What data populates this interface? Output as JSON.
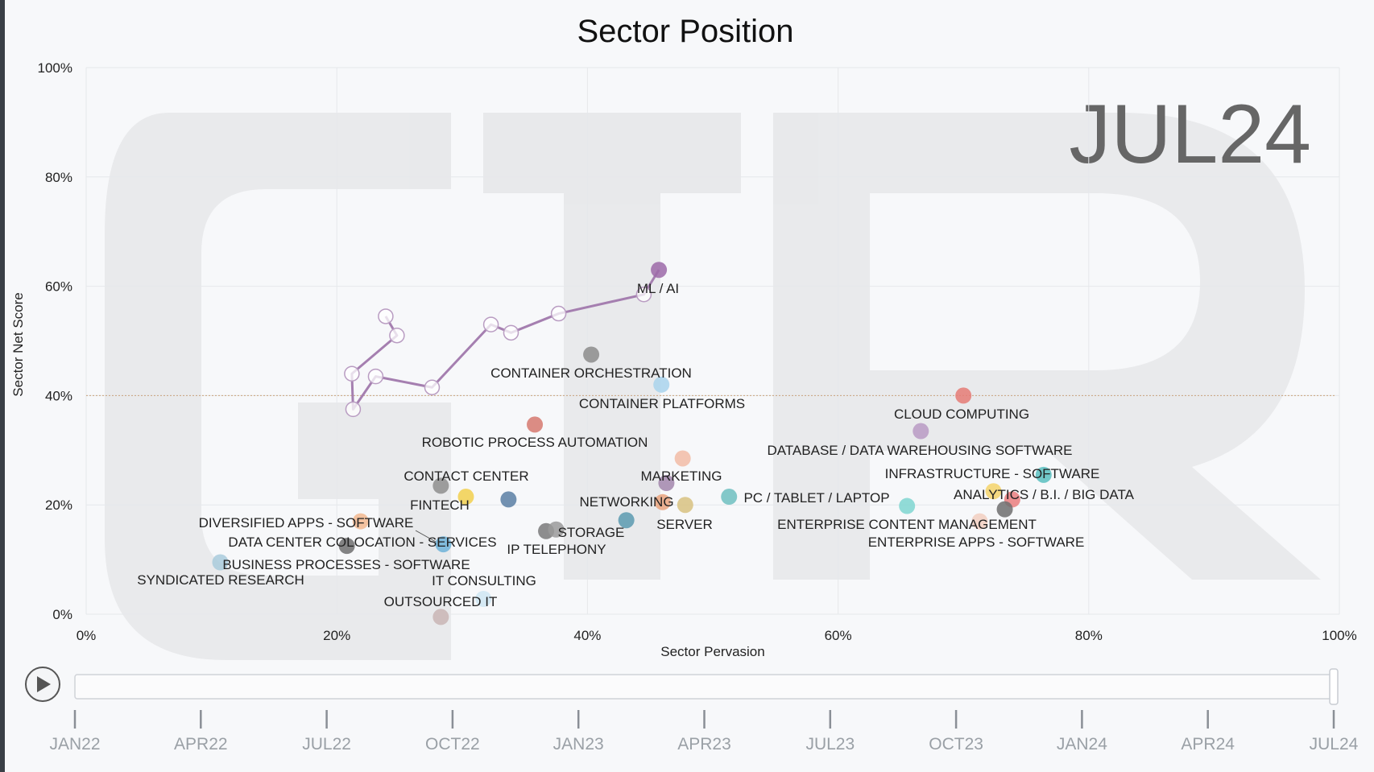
{
  "period_label": "JUL24",
  "chart_data": {
    "type": "scatter",
    "title": "Sector Position",
    "xlabel": "Sector Pervasion",
    "ylabel": "Sector Net Score",
    "xlim": [
      0,
      100
    ],
    "ylim": [
      0,
      100
    ],
    "x_ticks": [
      "0%",
      "20%",
      "40%",
      "60%",
      "80%",
      "100%"
    ],
    "y_ticks": [
      "0%",
      "20%",
      "40%",
      "60%",
      "80%",
      "100%"
    ],
    "reference_line_y": 40,
    "grid": true,
    "points": [
      {
        "label": "ML / AI",
        "x": 45.7,
        "y": 63.0,
        "color": "#9c6aa8"
      },
      {
        "label": "CONTAINER ORCHESTRATION",
        "x": 40.3,
        "y": 47.5,
        "color": "#8c8c8c"
      },
      {
        "label": "CONTAINER PLATFORMS",
        "x": 45.9,
        "y": 42.0,
        "color": "#a9d3ec"
      },
      {
        "label": "CLOUD COMPUTING",
        "x": 70.0,
        "y": 40.0,
        "color": "#e57b76"
      },
      {
        "label": "ROBOTIC PROCESS AUTOMATION",
        "x": 35.8,
        "y": 34.7,
        "color": "#d6796f"
      },
      {
        "label": "DATABASE / DATA WAREHOUSING SOFTWARE",
        "x": 66.6,
        "y": 33.5,
        "color": "#b89ac4"
      },
      {
        "label": "MARKETING",
        "x": 47.6,
        "y": 28.5,
        "color": "#f2bca6"
      },
      {
        "label": "MARKETING",
        "x": 46.3,
        "y": 24.0,
        "color": "#a286ab"
      },
      {
        "label": "INFRASTRUCTURE - SOFTWARE",
        "x": 76.4,
        "y": 25.5,
        "color": "#59bfbf"
      },
      {
        "label": "CONTACT CENTER",
        "x": 28.3,
        "y": 23.5,
        "color": "#8e8e8e"
      },
      {
        "label": "FINTECH",
        "x": 30.3,
        "y": 21.5,
        "color": "#f2d04d"
      },
      {
        "label": "FINTECH",
        "x": 33.7,
        "y": 21.0,
        "color": "#5a7fa3"
      },
      {
        "label": "ANALYTICS / B.I. / BIG DATA",
        "x": 72.4,
        "y": 22.5,
        "color": "#f4d46a"
      },
      {
        "label": "ANALYTICS / B.I. / BIG DATA",
        "x": 73.9,
        "y": 21.0,
        "color": "#ea7e7e"
      },
      {
        "label": "PC / TABLET / LAPTOP",
        "x": 51.3,
        "y": 21.5,
        "color": "#6fbfc0"
      },
      {
        "label": "NETWORKING",
        "x": 46.0,
        "y": 20.5,
        "color": "#e9a37e"
      },
      {
        "label": "SERVER",
        "x": 47.8,
        "y": 20.0,
        "color": "#d8c280"
      },
      {
        "label": "ENTERPRISE CONTENT MANAGEMENT",
        "x": 65.5,
        "y": 19.8,
        "color": "#7fd6d0"
      },
      {
        "label": "ENTERPRISE APPS - SOFTWARE",
        "x": 73.3,
        "y": 19.2,
        "color": "#6e6e6e"
      },
      {
        "label": "ENTERPRISE APPS - SOFTWARE",
        "x": 71.3,
        "y": 17.0,
        "color": "#f2cfc0"
      },
      {
        "label": "DIVERSIFIED APPS - SOFTWARE",
        "x": 21.9,
        "y": 17.0,
        "color": "#f2b98f"
      },
      {
        "label": "NETWORKING",
        "x": 43.1,
        "y": 17.2,
        "color": "#5b9ab0"
      },
      {
        "label": "STORAGE",
        "x": 36.7,
        "y": 15.2,
        "color": "#7a7a7a"
      },
      {
        "label": "STORAGE",
        "x": 37.5,
        "y": 15.5,
        "color": "#9a9a9a"
      },
      {
        "label": "DATA CENTER COLOCATION - SERVICES",
        "x": 20.8,
        "y": 12.5,
        "color": "#6f6f6f"
      },
      {
        "label": "DATA CENTER COLOCATION - SERVICES",
        "x": 28.5,
        "y": 12.8,
        "color": "#6fb3d9"
      },
      {
        "label": "BUSINESS PROCESSES - SOFTWARE",
        "x": 10.7,
        "y": 9.5,
        "color": "#a9cbdc"
      },
      {
        "label": "OUTSOURCED IT",
        "x": 31.7,
        "y": 2.8,
        "color": "#cfe6f2"
      },
      {
        "label": "OUTSOURCED IT",
        "x": 28.3,
        "y": -0.5,
        "color": "#c9b5b5"
      }
    ],
    "trail": {
      "series": "ML / AI",
      "points": [
        {
          "x": 23.9,
          "y": 54.5
        },
        {
          "x": 24.8,
          "y": 51.0
        },
        {
          "x": 21.2,
          "y": 44.0
        },
        {
          "x": 21.3,
          "y": 37.5
        },
        {
          "x": 23.1,
          "y": 43.5
        },
        {
          "x": 27.6,
          "y": 41.5
        },
        {
          "x": 32.3,
          "y": 53.0
        },
        {
          "x": 33.9,
          "y": 51.5
        },
        {
          "x": 37.7,
          "y": 55.0
        },
        {
          "x": 44.5,
          "y": 58.5
        },
        {
          "x": 45.7,
          "y": 63.0
        }
      ]
    }
  },
  "label_list": [
    {
      "text": "ML / AI"
    },
    {
      "text": "CONTAINER ORCHESTRATION"
    },
    {
      "text": "CONTAINER PLATFORMS"
    },
    {
      "text": "CLOUD COMPUTING"
    },
    {
      "text": "ROBOTIC PROCESS AUTOMATION"
    },
    {
      "text": "DATABASE / DATA WAREHOUSING SOFTWARE"
    },
    {
      "text": "CONTACT CENTER"
    },
    {
      "text": "MARKETING"
    },
    {
      "text": "INFRASTRUCTURE - SOFTWARE"
    },
    {
      "text": "FINTECH"
    },
    {
      "text": "NETWORKING"
    },
    {
      "text": "PC / TABLET / LAPTOP"
    },
    {
      "text": "ANALYTICS / B.I. / BIG DATA"
    },
    {
      "text": "DIVERSIFIED APPS - SOFTWARE"
    },
    {
      "text": "SERVER"
    },
    {
      "text": "ENTERPRISE CONTENT MANAGEMENT"
    },
    {
      "text": "STORAGE"
    },
    {
      "text": "DATA CENTER COLOCATION - SERVICES"
    },
    {
      "text": "IP TELEPHONY"
    },
    {
      "text": "ENTERPRISE APPS - SOFTWARE"
    },
    {
      "text": "BUSINESS PROCESSES - SOFTWARE"
    },
    {
      "text": "SYNDICATED RESEARCH"
    },
    {
      "text": "IT CONSULTING"
    },
    {
      "text": "OUTSOURCED IT"
    }
  ],
  "timeline": {
    "play_icon": "play-icon",
    "position": 1.0,
    "labels": [
      "JAN22",
      "APR22",
      "JUL22",
      "OCT22",
      "JAN23",
      "APR23",
      "JUL23",
      "OCT23",
      "JAN24",
      "APR24",
      "JUL24"
    ]
  }
}
